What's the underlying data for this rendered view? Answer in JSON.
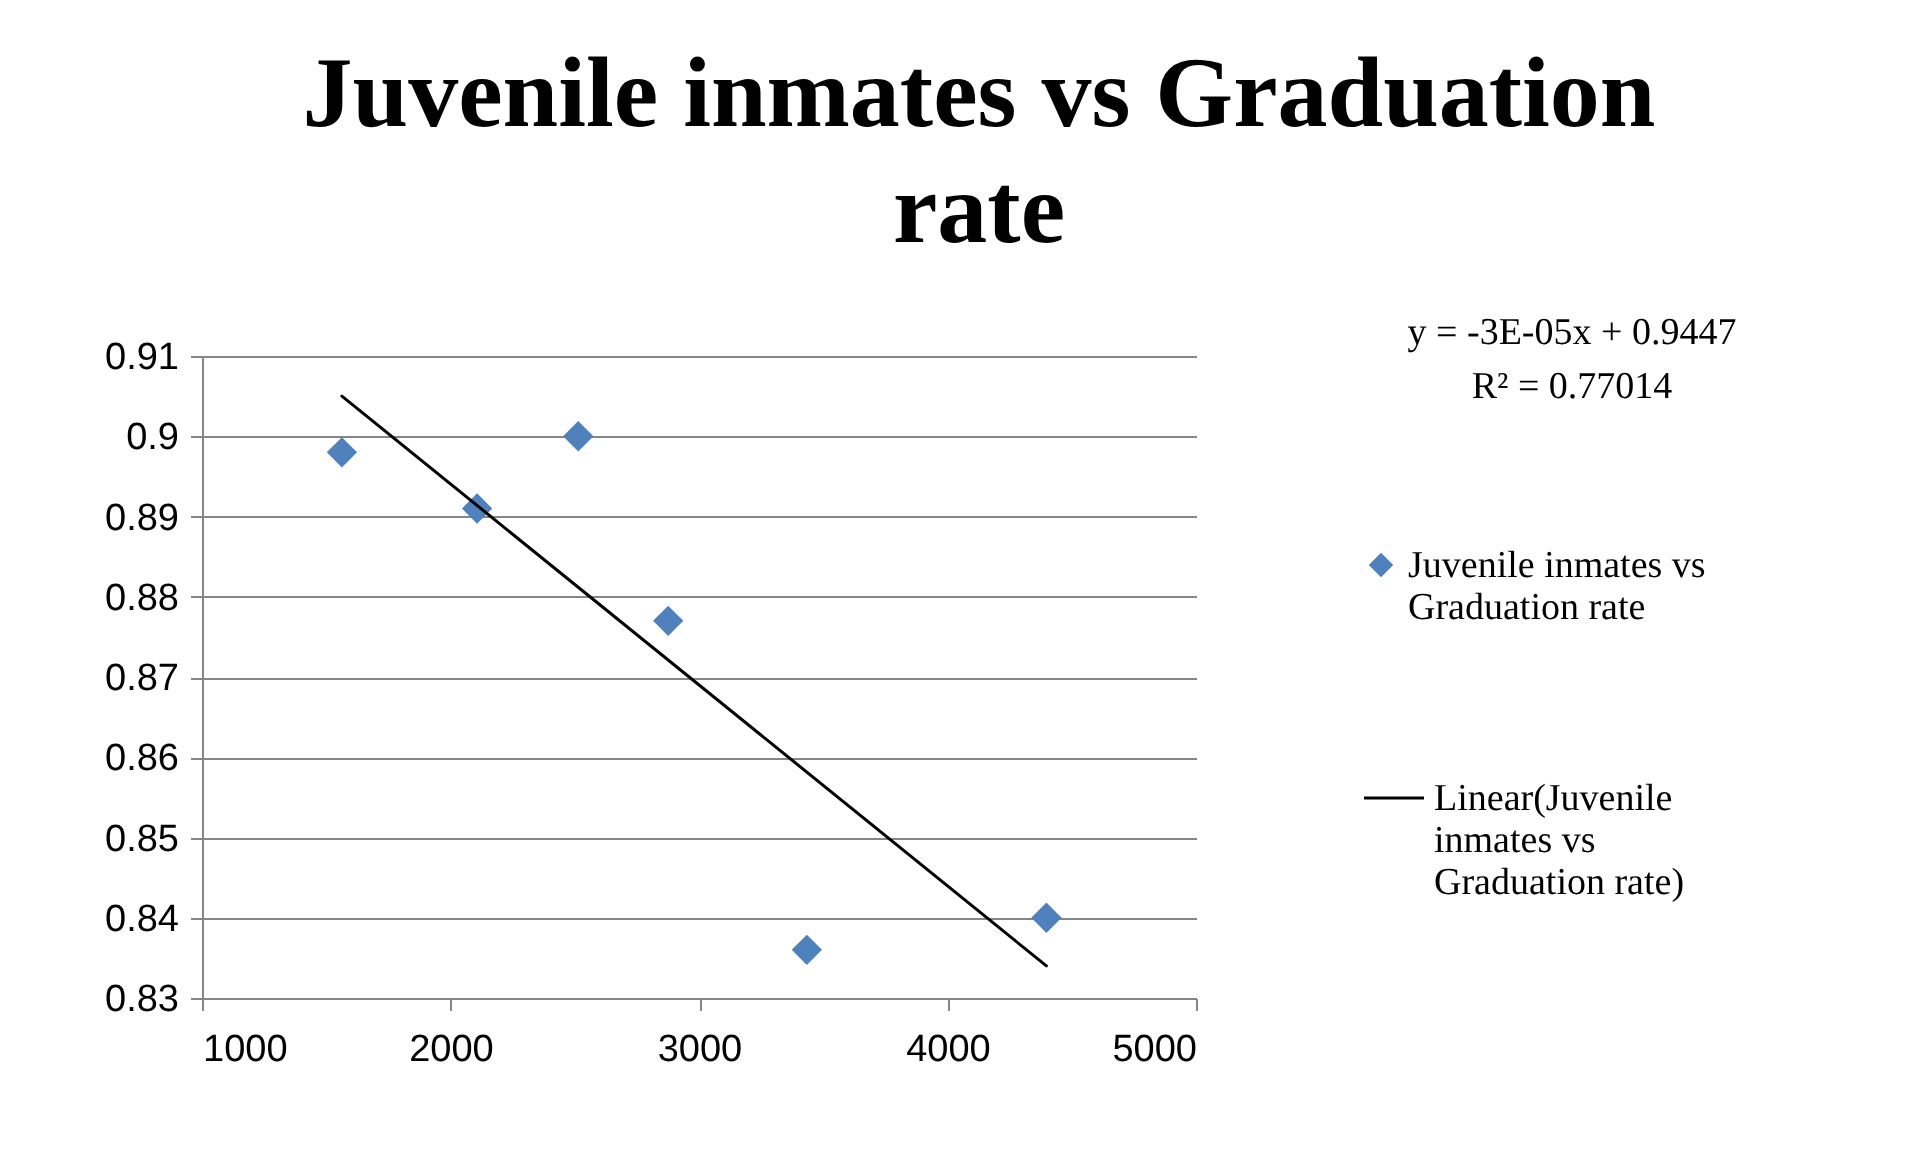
{
  "chart_data": {
    "type": "scatter",
    "title": "Juvenile inmates vs Graduation rate",
    "x": [
      1563,
      2107,
      2514,
      2876,
      3434,
      4398
    ],
    "series": [
      {
        "name": "Juvenile inmates vs Graduation rate",
        "color": "#4f81bd",
        "marker": "diamond",
        "values": [
          0.898,
          0.891,
          0.9,
          0.877,
          0.836,
          0.84
        ]
      },
      {
        "name": "Linear(Juvenile inmates vs Graduation rate)",
        "type": "line",
        "color": "#000000",
        "line_style": "solid",
        "x": [
          1563,
          4398
        ],
        "values": [
          0.905,
          0.834
        ]
      }
    ],
    "xlim": [
      1000,
      5000
    ],
    "xticks": [
      1000,
      2000,
      3000,
      4000,
      5000
    ],
    "ylim": [
      0.83,
      0.91
    ],
    "yticks": [
      0.83,
      0.84,
      0.85,
      0.86,
      0.87,
      0.88,
      0.89,
      0.9,
      0.91
    ],
    "grid": "y",
    "legend": "right",
    "annotations": [
      "y = -3E-05x + 0.9447",
      "R² = 0.77014"
    ]
  }
}
